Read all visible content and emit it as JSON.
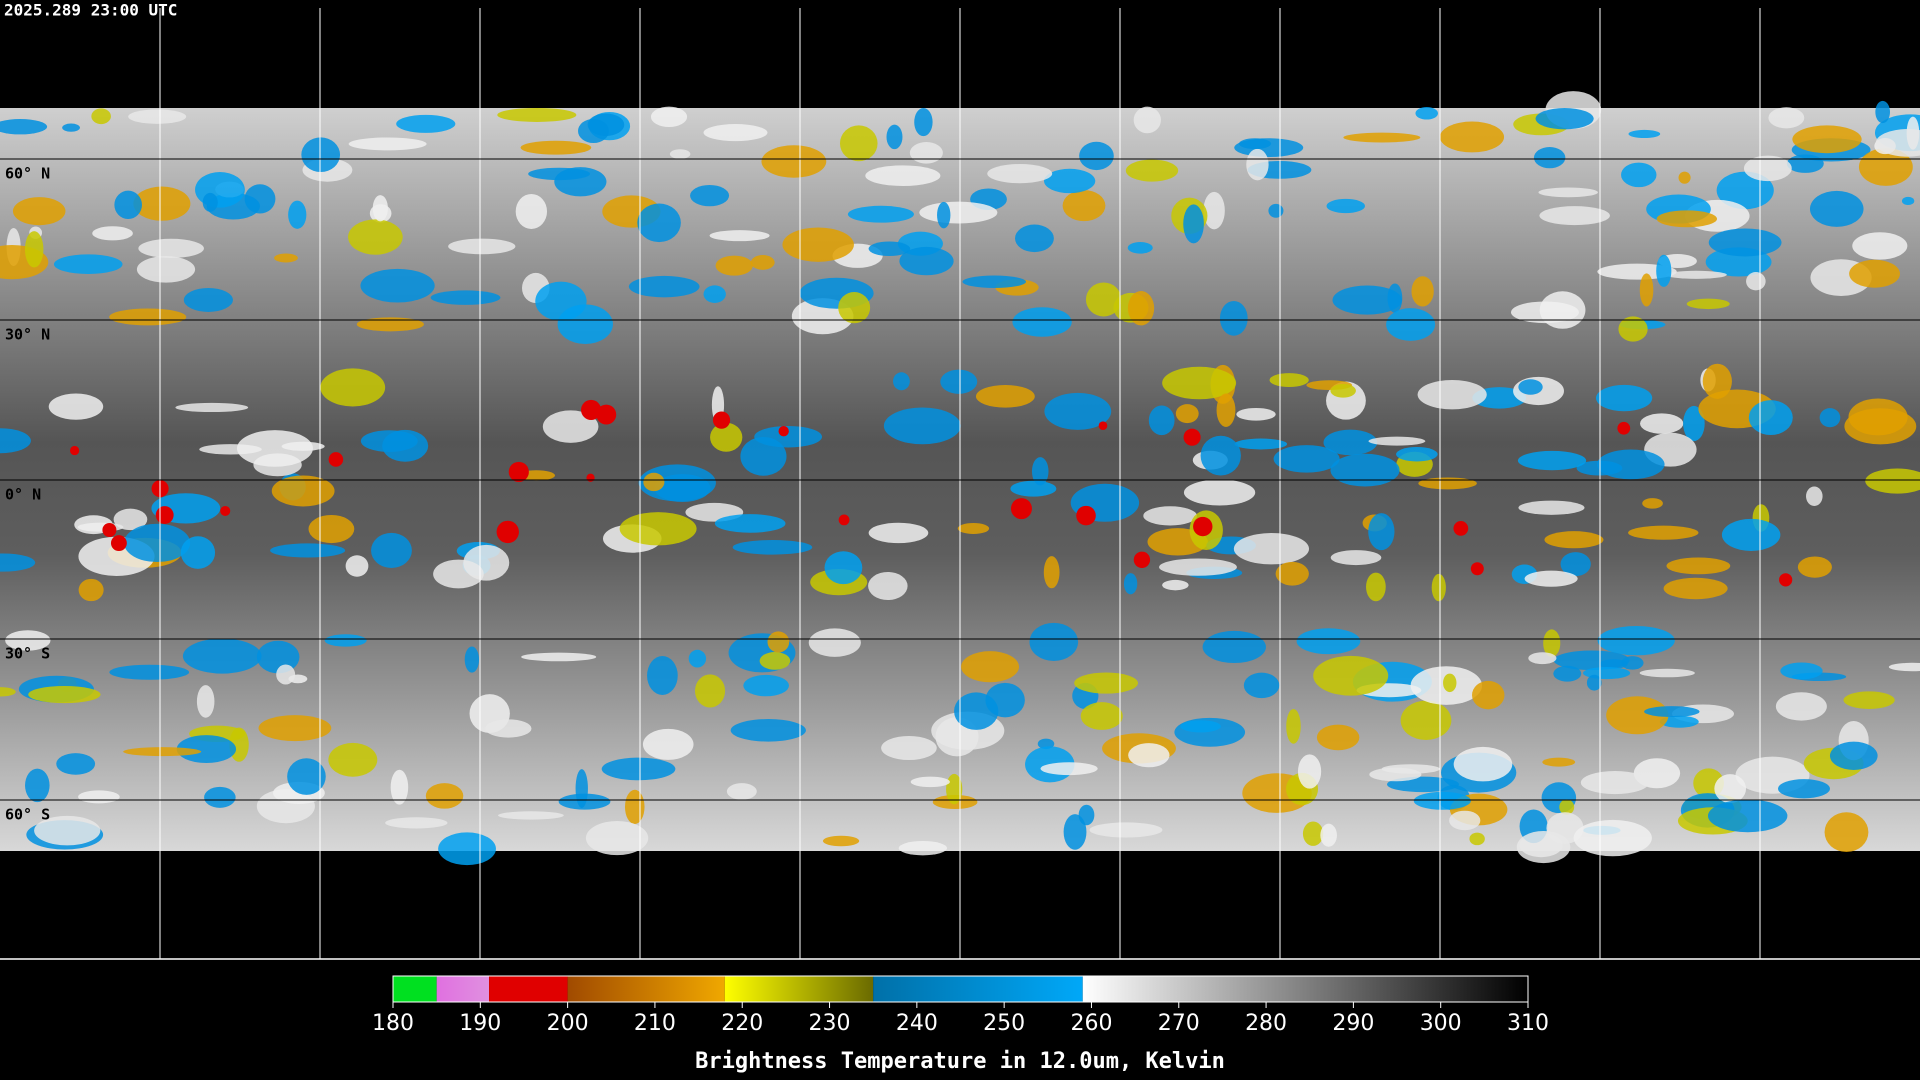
{
  "timestamp": "2025.289 23:00 UTC",
  "latitude_labels": [
    "60° N",
    "30° N",
    "0° N",
    "30° S",
    "60° S"
  ],
  "colorbar": {
    "label": "Brightness Temperature in 12.0um, Kelvin",
    "range": [
      180,
      310
    ],
    "ticks": [
      180,
      190,
      200,
      210,
      220,
      230,
      240,
      250,
      260,
      270,
      280,
      290,
      300,
      310
    ],
    "segments": [
      {
        "from": 180,
        "to": 185,
        "colors": [
          "#00e020",
          "#00e020"
        ]
      },
      {
        "from": 185,
        "to": 191,
        "colors": [
          "#e070e0",
          "#e090e0"
        ]
      },
      {
        "from": 191,
        "to": 200,
        "colors": [
          "#e00000",
          "#e00000"
        ]
      },
      {
        "from": 200,
        "to": 218,
        "colors": [
          "#a04a00",
          "#f0a800"
        ]
      },
      {
        "from": 218,
        "to": 235,
        "colors": [
          "#ffff00",
          "#6a6a00"
        ]
      },
      {
        "from": 235,
        "to": 259,
        "colors": [
          "#0070a8",
          "#00a8f8"
        ]
      },
      {
        "from": 259,
        "to": 310,
        "colors": [
          "#ffffff",
          "#000000"
        ]
      }
    ]
  }
}
